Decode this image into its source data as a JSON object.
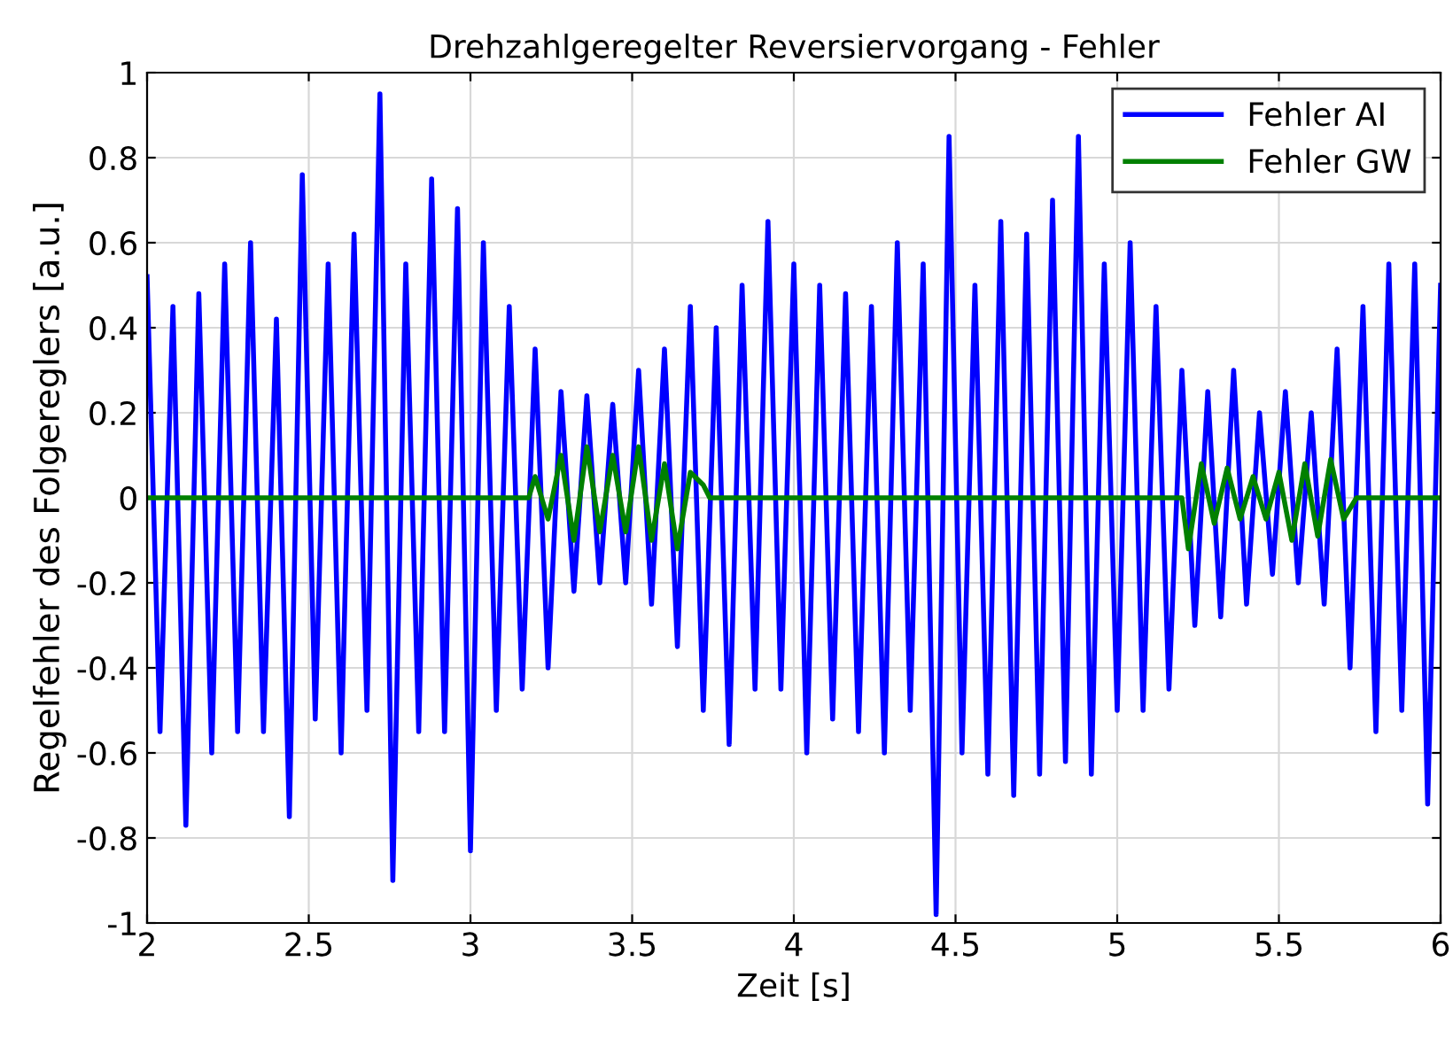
{
  "chart_data": {
    "type": "line",
    "title": "Drehzahlgeregelter Reversiervorgang - Fehler",
    "xlabel": "Zeit [s]",
    "ylabel": "Regelfehler des Folgereglers [a.u.]",
    "xlim": [
      2,
      6
    ],
    "ylim": [
      -1,
      1
    ],
    "xticks": [
      2,
      2.5,
      3,
      3.5,
      4,
      4.5,
      5,
      5.5,
      6
    ],
    "yticks": [
      -1,
      -0.8,
      -0.6,
      -0.4,
      -0.2,
      0,
      0.2,
      0.4,
      0.6,
      0.8,
      1
    ],
    "grid": true,
    "legend": "top right",
    "series": [
      {
        "name": "Fehler AI",
        "color": "#0000ff",
        "x": [
          2.0,
          2.04,
          2.08,
          2.12,
          2.16,
          2.2,
          2.24,
          2.28,
          2.32,
          2.36,
          2.4,
          2.44,
          2.48,
          2.52,
          2.56,
          2.6,
          2.64,
          2.68,
          2.72,
          2.76,
          2.8,
          2.84,
          2.88,
          2.92,
          2.96,
          3.0,
          3.04,
          3.08,
          3.12,
          3.16,
          3.2,
          3.24,
          3.28,
          3.32,
          3.36,
          3.4,
          3.44,
          3.48,
          3.52,
          3.56,
          3.6,
          3.64,
          3.68,
          3.72,
          3.76,
          3.8,
          3.84,
          3.88,
          3.92,
          3.96,
          4.0,
          4.04,
          4.08,
          4.12,
          4.16,
          4.2,
          4.24,
          4.28,
          4.32,
          4.36,
          4.4,
          4.44,
          4.48,
          4.52,
          4.56,
          4.6,
          4.64,
          4.68,
          4.72,
          4.76,
          4.8,
          4.84,
          4.88,
          4.92,
          4.96,
          5.0,
          5.04,
          5.08,
          5.12,
          5.16,
          5.2,
          5.24,
          5.28,
          5.32,
          5.36,
          5.4,
          5.44,
          5.48,
          5.52,
          5.56,
          5.6,
          5.64,
          5.68,
          5.72,
          5.76,
          5.8,
          5.84,
          5.88,
          5.92,
          5.96,
          6.0
        ],
        "values": [
          0.52,
          -0.55,
          0.45,
          -0.77,
          0.48,
          -0.6,
          0.55,
          -0.55,
          0.6,
          -0.55,
          0.42,
          -0.75,
          0.76,
          -0.52,
          0.55,
          -0.6,
          0.62,
          -0.5,
          0.95,
          -0.9,
          0.55,
          -0.55,
          0.75,
          -0.55,
          0.68,
          -0.83,
          0.6,
          -0.5,
          0.45,
          -0.45,
          0.35,
          -0.4,
          0.25,
          -0.22,
          0.24,
          -0.2,
          0.22,
          -0.2,
          0.3,
          -0.25,
          0.35,
          -0.35,
          0.45,
          -0.5,
          0.4,
          -0.58,
          0.5,
          -0.45,
          0.65,
          -0.45,
          0.55,
          -0.6,
          0.5,
          -0.52,
          0.48,
          -0.55,
          0.45,
          -0.6,
          0.6,
          -0.5,
          0.55,
          -0.98,
          0.85,
          -0.6,
          0.5,
          -0.65,
          0.65,
          -0.7,
          0.62,
          -0.65,
          0.7,
          -0.62,
          0.85,
          -0.65,
          0.55,
          -0.5,
          0.6,
          -0.5,
          0.45,
          -0.45,
          0.3,
          -0.3,
          0.25,
          -0.28,
          0.3,
          -0.25,
          0.2,
          -0.18,
          0.25,
          -0.2,
          0.2,
          -0.25,
          0.35,
          -0.4,
          0.45,
          -0.55,
          0.55,
          -0.5,
          0.55,
          -0.72,
          0.5
        ]
      },
      {
        "name": "Fehler GW",
        "color": "#008000",
        "x": [
          2.0,
          3.18,
          3.2,
          3.24,
          3.28,
          3.32,
          3.36,
          3.4,
          3.44,
          3.48,
          3.52,
          3.56,
          3.6,
          3.64,
          3.68,
          3.72,
          3.74,
          5.2,
          5.22,
          5.26,
          5.3,
          5.34,
          5.38,
          5.42,
          5.46,
          5.5,
          5.54,
          5.58,
          5.62,
          5.66,
          5.7,
          5.74,
          6.0
        ],
        "values": [
          0,
          0,
          0.05,
          -0.05,
          0.1,
          -0.1,
          0.12,
          -0.08,
          0.1,
          -0.08,
          0.12,
          -0.1,
          0.08,
          -0.12,
          0.06,
          0.03,
          0,
          0,
          -0.12,
          0.08,
          -0.06,
          0.07,
          -0.05,
          0.05,
          -0.05,
          0.06,
          -0.1,
          0.08,
          -0.09,
          0.09,
          -0.05,
          0,
          0
        ]
      }
    ]
  }
}
